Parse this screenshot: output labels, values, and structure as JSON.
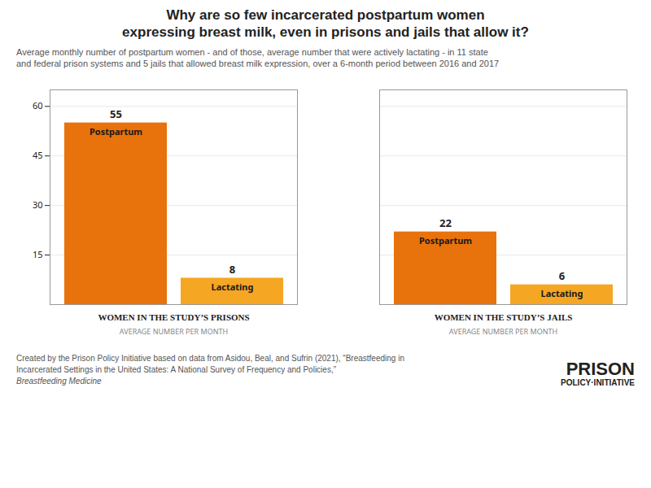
{
  "chart_data": {
    "type": "bar",
    "title": "Why are so few incarcerated postpartum women\nexpressing breast milk, even in prisons and jails that allow it?",
    "subtitle": "Average monthly number of postpartum women - and of those, average number that were actively lactating - in 11 state\nand federal prison systems and 5 jails that allowed breast milk expression, over a 6-month period between 2016 and 2017",
    "categories": [
      "WOMEN IN THE STUDY’S PRISONS",
      "WOMEN IN THE STUDY’S JAILS"
    ],
    "category_sublabels": [
      "AVERAGE NUMBER PER MONTH",
      "AVERAGE NUMBER PER MONTH"
    ],
    "series": [
      {
        "name": "Postpartum",
        "color": "#e8720c",
        "values": [
          55,
          22
        ]
      },
      {
        "name": "Lactating",
        "color": "#f5a623",
        "values": [
          8,
          6
        ]
      }
    ],
    "ylim": [
      0,
      65
    ],
    "yticks": [
      15,
      30,
      45,
      60
    ],
    "grid": true,
    "data_labels": true,
    "footnote": "Created by the Prison Policy Initiative based on data from Asidou, Beal, and Sufrin (2021), “Breastfeeding in\nIncarcerated Settings in the United States: A National Survey of Frequency and Policies,” ",
    "footnote_italic": "Breastfeeding Medicine",
    "logo": [
      "PRISON",
      "POLICY·INITIATIVE"
    ]
  }
}
